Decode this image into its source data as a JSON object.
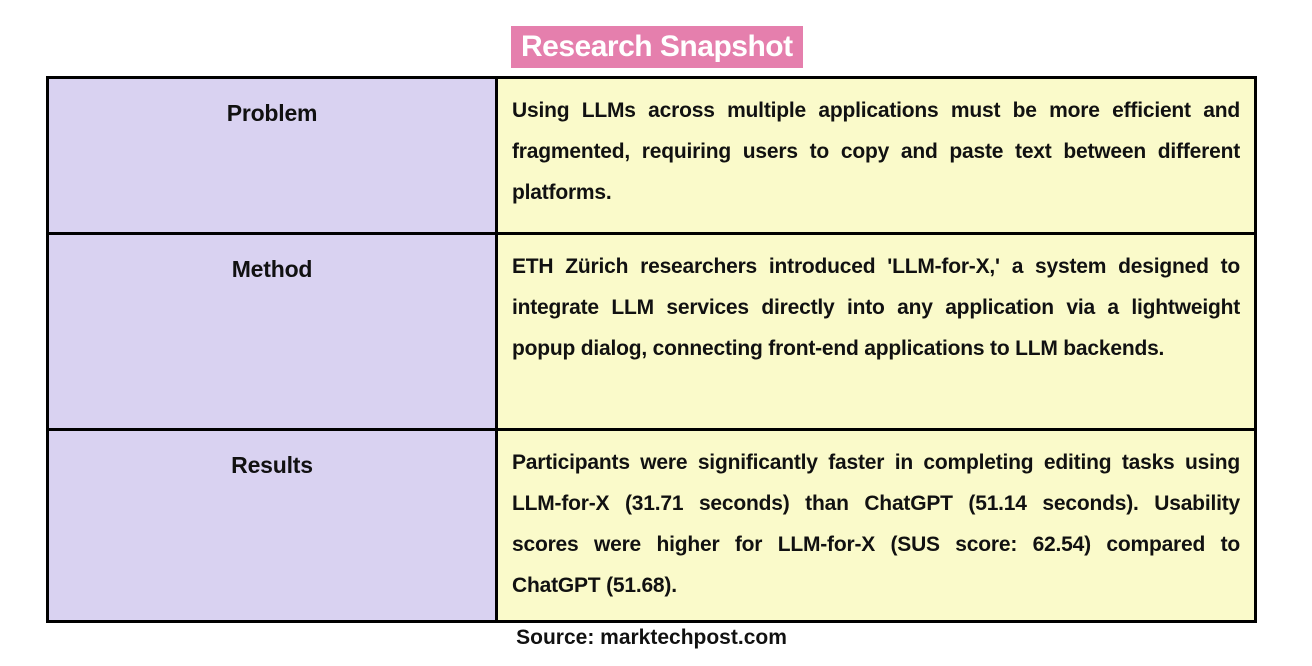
{
  "title": "Research Snapshot",
  "table": {
    "rows": [
      {
        "label": "Problem",
        "content": "Using LLMs across multiple applications must be more efficient and fragmented, requiring users to copy and paste text between different platforms."
      },
      {
        "label": "Method",
        "content": "ETH Zürich researchers introduced 'LLM-for-X,' a system designed to integrate LLM services directly into any application via a lightweight popup dialog, connecting front-end applications to LLM backends."
      },
      {
        "label": "Results",
        "content": "Participants were significantly faster in completing editing tasks using LLM-for-X (31.71 seconds) than ChatGPT (51.14 seconds). Usability scores were higher for LLM-for-X (SUS score: 62.54) compared to ChatGPT (51.68)."
      }
    ]
  },
  "footer": {
    "source": "Source: marktechpost.com"
  },
  "colors": {
    "title_bg": "#E57FAD",
    "title_text": "#FFFFFF",
    "label_bg": "#D9D2F1",
    "content_bg": "#FAFACA",
    "border": "#000000"
  }
}
